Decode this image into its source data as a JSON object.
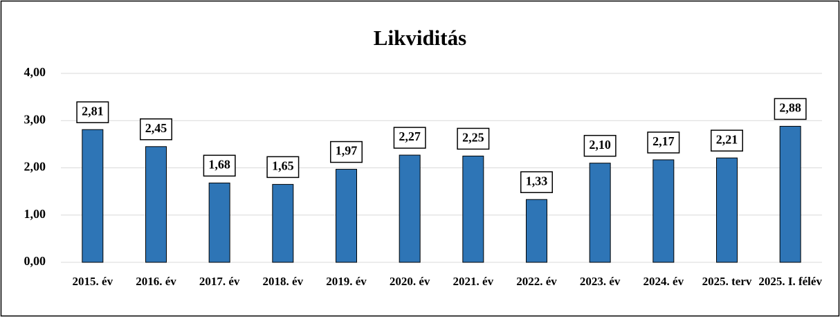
{
  "chart_data": {
    "type": "bar",
    "title": "Likviditás",
    "categories": [
      "2015. év",
      "2016. év",
      "2017. év",
      "2018. év",
      "2019. év",
      "2020. év",
      "2021. év",
      "2022. év",
      "2023. év",
      "2024. év",
      "2025. terv",
      "2025. I. félév"
    ],
    "values": [
      2.81,
      2.45,
      1.68,
      1.65,
      1.97,
      2.27,
      2.25,
      1.33,
      2.1,
      2.17,
      2.21,
      2.88
    ],
    "value_labels": [
      "2,81",
      "2,45",
      "1,68",
      "1,65",
      "1,97",
      "2,27",
      "2,25",
      "1,33",
      "2,10",
      "2,17",
      "2,21",
      "2,88"
    ],
    "color": "#2e75b6",
    "ylim": [
      0,
      4
    ],
    "yticks": [
      {
        "value": 0,
        "label": "0,00"
      },
      {
        "value": 1,
        "label": "1,00"
      },
      {
        "value": 2,
        "label": "2,00"
      },
      {
        "value": 3,
        "label": "3,00"
      },
      {
        "value": 4,
        "label": "4,00"
      }
    ],
    "grid": true
  }
}
